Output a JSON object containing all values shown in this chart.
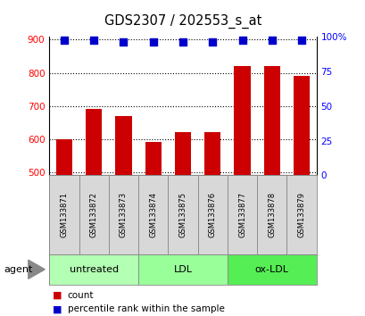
{
  "title": "GDS2307 / 202553_s_at",
  "samples": [
    "GSM133871",
    "GSM133872",
    "GSM133873",
    "GSM133874",
    "GSM133875",
    "GSM133876",
    "GSM133877",
    "GSM133878",
    "GSM133879"
  ],
  "bar_values": [
    600,
    690,
    670,
    590,
    620,
    620,
    820,
    820,
    790
  ],
  "percentile_values": [
    97,
    97,
    96,
    96,
    96,
    96,
    97,
    97,
    97
  ],
  "bar_color": "#cc0000",
  "dot_color": "#0000cc",
  "ylim_left": [
    490,
    910
  ],
  "ylim_right": [
    0,
    100
  ],
  "yticks_left": [
    500,
    600,
    700,
    800,
    900
  ],
  "yticks_right": [
    0,
    25,
    50,
    75,
    100
  ],
  "yticklabels_right": [
    "0",
    "25",
    "50",
    "75",
    "100%"
  ],
  "groups": [
    {
      "label": "untreated",
      "indices": [
        0,
        1,
        2
      ],
      "color": "#b3ffb3"
    },
    {
      "label": "LDL",
      "indices": [
        3,
        4,
        5
      ],
      "color": "#99ff99"
    },
    {
      "label": "ox-LDL",
      "indices": [
        6,
        7,
        8
      ],
      "color": "#55ee55"
    }
  ],
  "agent_label": "agent",
  "legend_count_label": "count",
  "legend_pct_label": "percentile rank within the sample",
  "bar_width": 0.55,
  "bg_color": "#ffffff"
}
